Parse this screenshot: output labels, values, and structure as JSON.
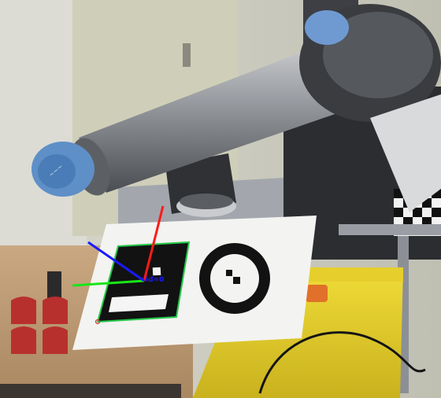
{
  "photo": {
    "subject": "robot-arm-with-fiducial-marker",
    "marker_id_text": "id=0",
    "axis_colors": {
      "x": "#ff1a1a",
      "y": "#19e619",
      "z": "#1a1aff"
    },
    "marker_outline_color": "#27c84a"
  }
}
